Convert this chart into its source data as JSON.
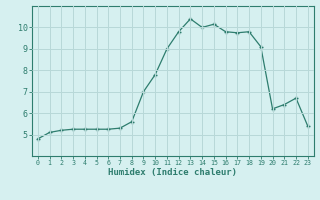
{
  "x": [
    0,
    1,
    2,
    3,
    4,
    5,
    6,
    7,
    8,
    9,
    10,
    11,
    12,
    13,
    14,
    15,
    16,
    17,
    18,
    19,
    20,
    21,
    22,
    23
  ],
  "y": [
    4.8,
    5.1,
    5.2,
    5.25,
    5.25,
    5.25,
    5.25,
    5.3,
    5.6,
    7.0,
    7.8,
    9.0,
    9.8,
    10.4,
    10.0,
    10.15,
    9.8,
    9.75,
    9.8,
    9.1,
    6.2,
    6.4,
    6.7,
    5.4
  ],
  "line_color": "#2e7d6e",
  "marker_color": "#2e7d6e",
  "bg_color": "#d6f0f0",
  "grid_color": "#b8d8d8",
  "axis_color": "#2e7d6e",
  "tick_color": "#2e7d6e",
  "xlabel": "Humidex (Indice chaleur)",
  "ylim": [
    4,
    11
  ],
  "xlim": [
    -0.5,
    23.5
  ],
  "yticks": [
    5,
    6,
    7,
    8,
    9,
    10
  ],
  "xticks": [
    0,
    1,
    2,
    3,
    4,
    5,
    6,
    7,
    8,
    9,
    10,
    11,
    12,
    13,
    14,
    15,
    16,
    17,
    18,
    19,
    20,
    21,
    22,
    23
  ]
}
